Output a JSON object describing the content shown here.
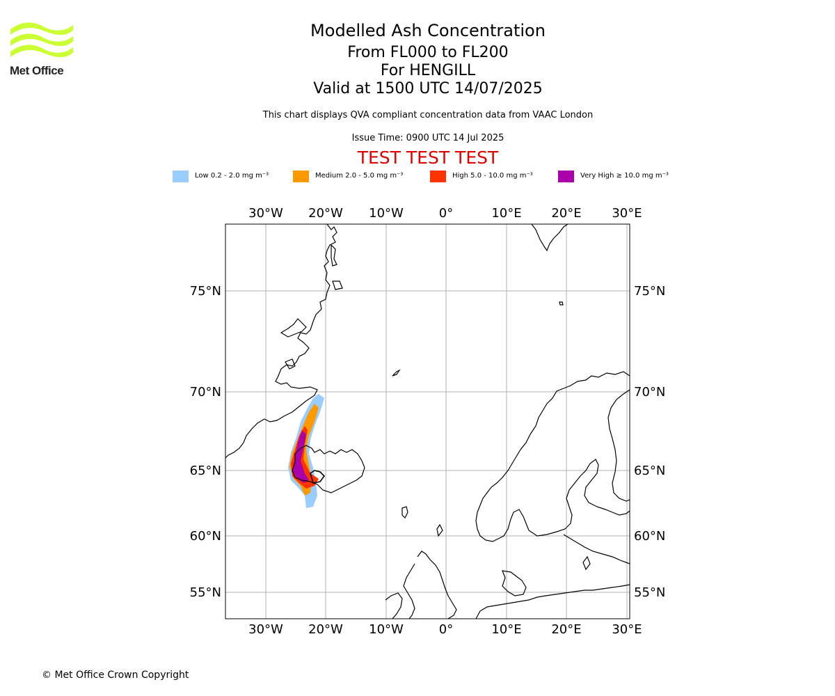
{
  "logo": {
    "name": "Met Office",
    "color": "#ccff33"
  },
  "title": "Modelled Ash Concentration",
  "subtitle_lines": [
    "From FL000 to FL200",
    "For HENGILL",
    "Valid at 1500 UTC 14/07/2025"
  ],
  "description": "This chart displays QVA compliant concentration data from VAAC London",
  "issue_time": "Issue Time: 0900 UTC 14 Jul 2025",
  "test_banner": "TEST TEST TEST",
  "legend": [
    {
      "label": "Low 0.2 - 2.0 mg m⁻³",
      "color": "#99ccff"
    },
    {
      "label": "Medium 2.0 - 5.0 mg m⁻³",
      "color": "#ff9900"
    },
    {
      "label": "High 5.0 - 10.0 mg m⁻³",
      "color": "#ff3300"
    },
    {
      "label": "Very High ≥ 10.0 mg m⁻³",
      "color": "#aa00aa"
    }
  ],
  "map": {
    "lon_labels": [
      "30°W",
      "20°W",
      "10°W",
      "0°",
      "10°E",
      "20°E",
      "30°E"
    ],
    "lat_labels": [
      "75°N",
      "70°N",
      "65°N",
      "60°N",
      "55°N"
    ]
  },
  "copyright": "© Met Office Crown Copyright"
}
